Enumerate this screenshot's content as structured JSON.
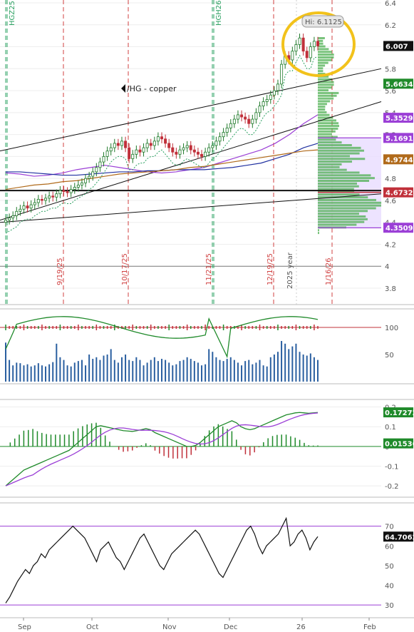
{
  "chart_data": {
    "type": "candlestick",
    "symbol_label": "/HG - copper",
    "hi_annotation": "Hi: 6.1125",
    "x_labels": [
      "Sep",
      "Oct",
      "Nov",
      "Dec",
      "26",
      "Feb"
    ],
    "event_dates": [
      "9/19/25",
      "10/17/25",
      "11/21/25",
      "12/19/25",
      "1/16/26"
    ],
    "contract_labels": [
      "HGZ25",
      "HGH26"
    ],
    "year_label": "2025 year",
    "price_axis": {
      "ticks": [
        "6.4",
        "6.2",
        "6",
        "5.8",
        "5.6",
        "5.4",
        "5.2",
        "5",
        "4.8",
        "4.6",
        "4.4",
        "4.2",
        "4",
        "3.8"
      ],
      "ylim": [
        3.7,
        6.45
      ]
    },
    "price_tags": [
      {
        "value": "6.007",
        "color": "#111111",
        "text_color": "#ffffff"
      },
      {
        "value": "5.6634",
        "color": "#1f8a2a",
        "text_color": "#ffffff"
      },
      {
        "value": "5.3529",
        "color": "#9b3fd6",
        "text_color": "#ffffff"
      },
      {
        "value": "5.1691",
        "color": "#9b3fd6",
        "text_color": "#ffffff"
      },
      {
        "value": "4.9744",
        "color": "#b06a1a",
        "text_color": "#ffffff"
      },
      {
        "value": "4.6732",
        "color": "#c0303a",
        "text_color": "#ffffff"
      },
      {
        "value": "4.3509",
        "color": "#9b3fd6",
        "text_color": "#ffffff"
      }
    ],
    "closes": [
      4.42,
      4.44,
      4.46,
      4.5,
      4.52,
      4.55,
      4.53,
      4.56,
      4.58,
      4.61,
      4.6,
      4.62,
      4.64,
      4.63,
      4.66,
      4.69,
      4.68,
      4.67,
      4.7,
      4.72,
      4.74,
      4.76,
      4.8,
      4.82,
      4.86,
      4.9,
      4.95,
      5.0,
      5.05,
      5.08,
      5.12,
      5.1,
      5.14,
      5.08,
      4.98,
      5.02,
      5.06,
      5.04,
      5.08,
      5.12,
      5.1,
      5.14,
      5.18,
      5.16,
      5.12,
      5.08,
      5.04,
      5.02,
      5.06,
      5.08,
      5.1,
      5.06,
      5.04,
      5.02,
      5.0,
      5.04,
      5.08,
      5.1,
      5.14,
      5.18,
      5.22,
      5.26,
      5.3,
      5.34,
      5.38,
      5.36,
      5.34,
      5.3,
      5.34,
      5.4,
      5.46,
      5.5,
      5.52,
      5.56,
      5.6,
      5.66,
      5.84,
      5.92,
      5.88,
      5.96,
      6.02,
      6.08,
      5.96,
      5.9,
      6.0,
      6.05,
      6.007
    ],
    "volume_axis": {
      "ticks": [
        "100",
        "50"
      ]
    },
    "volume": [
      72,
      40,
      30,
      35,
      34,
      30,
      32,
      28,
      30,
      34,
      30,
      28,
      32,
      36,
      70,
      45,
      40,
      30,
      28,
      35,
      38,
      40,
      30,
      50,
      42,
      45,
      40,
      48,
      50,
      60,
      40,
      35,
      45,
      50,
      40,
      38,
      45,
      40,
      30,
      35,
      40,
      45,
      38,
      42,
      40,
      35,
      30,
      32,
      38,
      40,
      45,
      42,
      38,
      35,
      30,
      32,
      60,
      55,
      45,
      40,
      38,
      42,
      45,
      40,
      35,
      30,
      38,
      40,
      32,
      35,
      40,
      30,
      28,
      45,
      50,
      55,
      75,
      70,
      60,
      65,
      70,
      55,
      50,
      48,
      52,
      45,
      40
    ],
    "macd_axis": {
      "ticks": [
        "0.2",
        "0.1",
        "0",
        "-0.1",
        "-0.2"
      ],
      "ylim": [
        -0.25,
        0.22
      ]
    },
    "macd_tags": [
      {
        "value": "0.17272",
        "color": "#1f8a2a"
      },
      {
        "value": "0.01536",
        "color": "#1f8a2a"
      }
    ],
    "macd": [
      -0.2,
      -0.18,
      -0.16,
      -0.14,
      -0.12,
      -0.11,
      -0.1,
      -0.09,
      -0.08,
      -0.07,
      -0.06,
      -0.05,
      -0.04,
      -0.03,
      -0.02,
      0.0,
      0.02,
      0.04,
      0.06,
      0.08,
      0.1,
      0.105,
      0.1,
      0.095,
      0.09,
      0.085,
      0.08,
      0.078,
      0.076,
      0.08,
      0.085,
      0.09,
      0.085,
      0.07,
      0.06,
      0.05,
      0.04,
      0.03,
      0.02,
      0.01,
      0.0,
      0.0,
      0.005,
      0.02,
      0.04,
      0.06,
      0.08,
      0.1,
      0.11,
      0.12,
      0.13,
      0.12,
      0.1,
      0.09,
      0.085,
      0.09,
      0.1,
      0.11,
      0.12,
      0.13,
      0.14,
      0.15,
      0.16,
      0.165,
      0.17,
      0.172,
      0.17,
      0.168,
      0.17,
      0.172
    ],
    "rsi_axis": {
      "ticks": [
        "70",
        "60",
        "50",
        "40",
        "30"
      ],
      "ylim": [
        25,
        80
      ]
    },
    "rsi_tag": {
      "value": "64.7062",
      "color": "#111111"
    },
    "rsi": [
      31,
      34,
      38,
      42,
      45,
      48,
      46,
      50,
      52,
      56,
      54,
      58,
      60,
      62,
      64,
      66,
      68,
      70,
      68,
      66,
      64,
      60,
      56,
      52,
      58,
      60,
      62,
      58,
      54,
      52,
      48,
      52,
      56,
      60,
      64,
      66,
      62,
      58,
      54,
      50,
      48,
      52,
      56,
      58,
      60,
      62,
      64,
      66,
      68,
      66,
      62,
      58,
      54,
      50,
      46,
      44,
      48,
      52,
      56,
      60,
      64,
      68,
      70,
      66,
      60,
      56,
      60,
      62,
      64,
      66,
      70,
      74,
      60,
      62,
      66,
      68,
      64,
      58,
      62,
      64.7
    ]
  }
}
